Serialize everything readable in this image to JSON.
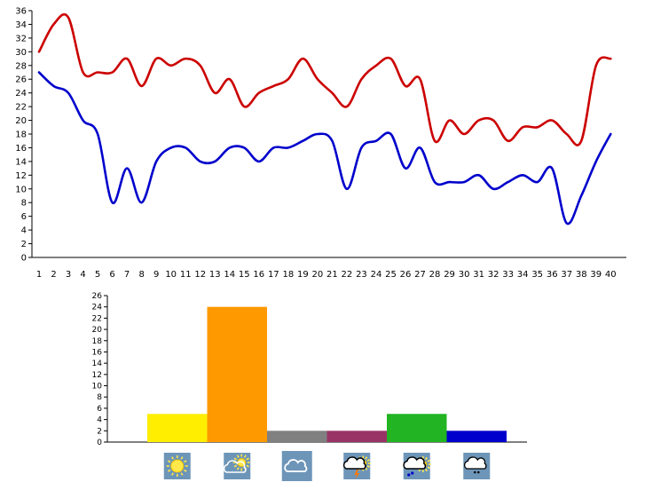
{
  "chart_data": [
    {
      "type": "line",
      "title": "",
      "xlabel": "",
      "ylabel": "",
      "x": [
        1,
        2,
        3,
        4,
        5,
        6,
        7,
        8,
        9,
        10,
        11,
        12,
        13,
        14,
        15,
        16,
        17,
        18,
        19,
        20,
        21,
        22,
        23,
        24,
        25,
        26,
        27,
        28,
        29,
        30,
        31,
        32,
        33,
        34,
        35,
        36,
        37,
        38,
        39,
        40
      ],
      "x_labels": [
        "1",
        "2",
        "3",
        "4",
        "5",
        "6",
        "7",
        "8",
        "9",
        "10",
        "11",
        "12",
        "13",
        "14",
        "15",
        "16",
        "17",
        "18",
        "19",
        "20",
        "21",
        "22",
        "23",
        "24",
        "25",
        "26",
        "27",
        "28",
        "29",
        "30",
        "31",
        "32",
        "33",
        "34",
        "35",
        "36",
        "37",
        "38",
        "39",
        "40"
      ],
      "ylim": [
        0,
        36
      ],
      "y_ticks": [
        0,
        2,
        4,
        6,
        8,
        10,
        12,
        14,
        16,
        18,
        20,
        22,
        24,
        26,
        28,
        30,
        32,
        34,
        36
      ],
      "grid": false,
      "series": [
        {
          "color": "#cc0000",
          "values": [
            30,
            34,
            35,
            27,
            27,
            27,
            29,
            25,
            29,
            28,
            29,
            28,
            24,
            26,
            22,
            24,
            25,
            26,
            29,
            26,
            24,
            22,
            26,
            28,
            29,
            25,
            26,
            17,
            20,
            18,
            20,
            20,
            17,
            19,
            19,
            20,
            18,
            17,
            28,
            29
          ]
        },
        {
          "color": "#0000cc",
          "values": [
            27,
            25,
            24,
            20,
            18,
            8,
            13,
            8,
            14,
            16,
            16,
            14,
            14,
            16,
            16,
            14,
            16,
            16,
            17,
            18,
            17,
            10,
            16,
            17,
            18,
            13,
            16,
            11,
            11,
            11,
            12,
            10,
            11,
            12,
            11,
            13,
            5,
            9,
            14,
            18
          ]
        }
      ]
    },
    {
      "type": "bar",
      "title": "",
      "xlabel": "",
      "ylabel": "",
      "ylim": [
        0,
        26
      ],
      "y_ticks": [
        0,
        2,
        4,
        6,
        8,
        10,
        12,
        14,
        16,
        18,
        20,
        22,
        24,
        26
      ],
      "grid": false,
      "categories": [
        "sunny",
        "sun-behind-cloud",
        "cloudy",
        "thunderstorm",
        "rain-sun-cloud",
        "rain-cloud"
      ],
      "values": [
        5,
        24,
        2,
        2,
        5,
        2
      ],
      "colors": [
        "#ffee00",
        "#ff9900",
        "#808080",
        "#993366",
        "#22b422",
        "#0000cc"
      ],
      "category_icons": [
        "sun-icon",
        "partly-cloudy-icon",
        "cloud-icon",
        "thunderstorm-icon",
        "rain-sun-icon",
        "rain-icon"
      ]
    }
  ]
}
